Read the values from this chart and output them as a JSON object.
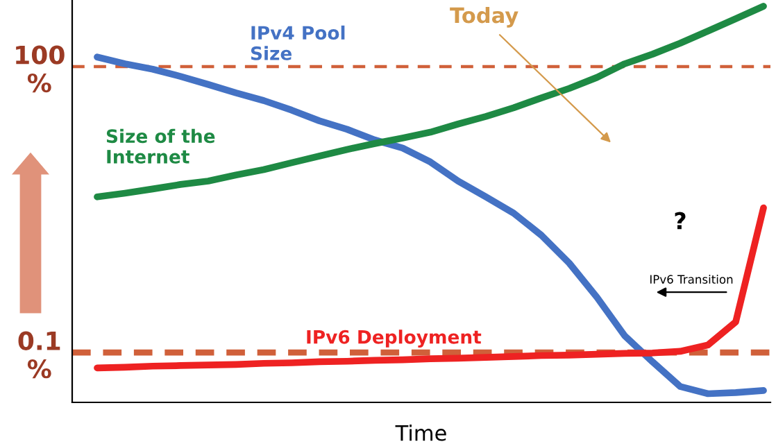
{
  "chart_data": {
    "type": "line",
    "xlabel": "Time",
    "categories": [
      null,
      null,
      null,
      null,
      null,
      null,
      null,
      null,
      null,
      null,
      null,
      null,
      null,
      null,
      null,
      null,
      null,
      null,
      null,
      null,
      null,
      null,
      null,
      null,
      null
    ],
    "log": "y",
    "ylim": [
      0.03,
      500
    ],
    "yticks": [
      {
        "value": 0.1,
        "label": "0.1\n%"
      },
      {
        "value": 100,
        "label": "100\n%"
      }
    ],
    "series": [
      {
        "name": "IPv4 Pool\nSize",
        "color": "#4472c4",
        "values": [
          126,
          107,
          94,
          79,
          65,
          53,
          44,
          35,
          27,
          22,
          17,
          14,
          10,
          6.3,
          4.3,
          2.9,
          1.7,
          0.87,
          0.38,
          0.15,
          0.08,
          0.044,
          0.037,
          0.038,
          0.04
        ]
      },
      {
        "name": "Size of the\nInternet",
        "color": "#1e8a44",
        "values": [
          4.3,
          4.7,
          5.2,
          5.8,
          6.3,
          7.3,
          8.3,
          9.8,
          11.5,
          13.5,
          15.6,
          17.8,
          20.5,
          25,
          30,
          37,
          47,
          59,
          77,
          107,
          135,
          176,
          236,
          318,
          430
        ]
      },
      {
        "name": "IPv6 Deployment",
        "color": "#ee2222",
        "values": [
          0.069,
          0.07,
          0.072,
          0.073,
          0.074,
          0.075,
          0.077,
          0.078,
          0.08,
          0.081,
          0.083,
          0.084,
          0.086,
          0.087,
          0.089,
          0.091,
          0.093,
          0.094,
          0.096,
          0.098,
          0.099,
          0.103,
          0.12,
          0.21,
          3.3
        ]
      }
    ],
    "ref_lines": [
      {
        "axis": "y",
        "value": 100,
        "color": "#d0603a",
        "line_style": "dashed"
      },
      {
        "axis": "y",
        "value": 0.1,
        "color": "#d0603a",
        "line_style": "dashed"
      }
    ],
    "annotations": [
      "Today",
      "?",
      "IPv6 Transition"
    ],
    "grid": false,
    "marker": "none",
    "line_style": "solid"
  }
}
